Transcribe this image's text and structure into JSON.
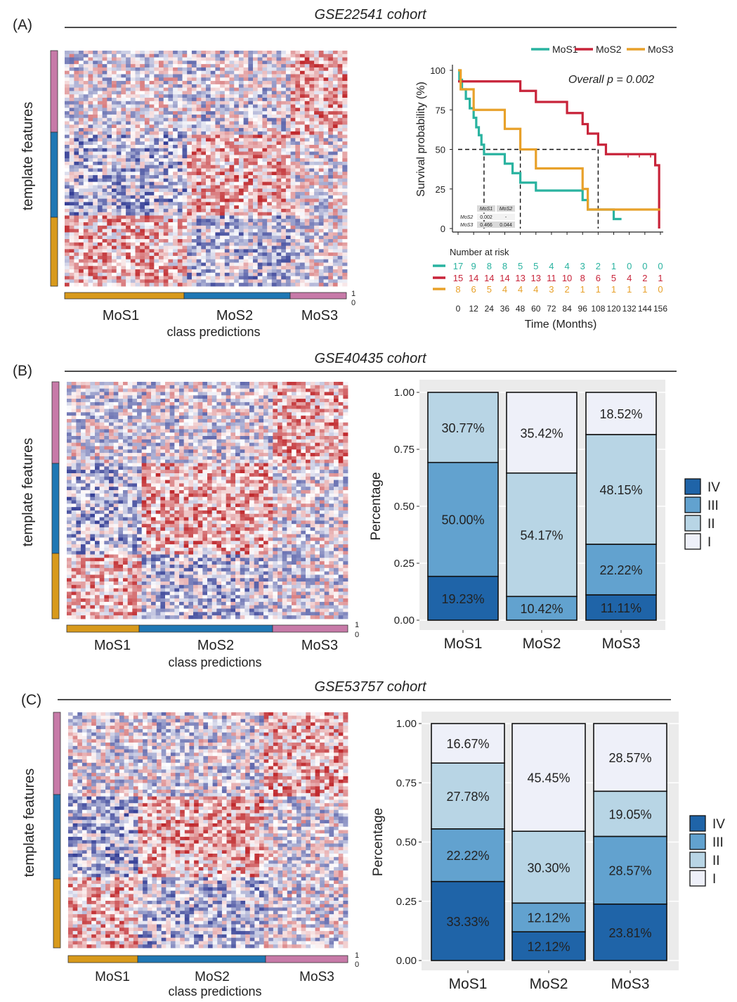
{
  "panels": [
    {
      "label": "(A)",
      "cohort": "GSE22541 cohort",
      "heatmap": {
        "ylabel": "template features",
        "xlabel": "class predictions",
        "classes": [
          "MoS1",
          "MoS2",
          "MoS3"
        ],
        "legend_hi": "1",
        "legend_lo": "0"
      }
    },
    {
      "label": "(B)",
      "cohort": "GSE40435 cohort",
      "heatmap": {
        "ylabel": "template features",
        "xlabel": "class predictions",
        "classes": [
          "MoS1",
          "MoS2",
          "MoS3"
        ],
        "legend_hi": "1",
        "legend_lo": "0"
      }
    },
    {
      "label": "(C)",
      "cohort": "GSE53757 cohort",
      "heatmap": {
        "ylabel": "template features",
        "xlabel": "class predictions",
        "classes": [
          "MoS1",
          "MoS2",
          "MoS3"
        ],
        "legend_hi": "1",
        "legend_lo": "0"
      }
    }
  ],
  "colors": {
    "MoS1": "#2ab3a0",
    "MoS2": "#c8243a",
    "MoS3": "#e8a12a",
    "hm_high": "#c0282c",
    "hm_low": "#2a3591",
    "bar_feature_top": "#c77aa8",
    "bar_feature_mid": "#1f77b4",
    "bar_feature_bottom": "#d89a1c",
    "class_bar_MoS1": "#d89a1c",
    "class_bar_MoS2": "#1f77b4",
    "class_bar_MoS3": "#c77aa8",
    "grade_IV": "#1f64a8",
    "grade_III": "#62a2cf",
    "grade_II": "#b8d5e5",
    "grade_I": "#eef0f9",
    "panel_bg": "#ebebeb"
  },
  "chart_data": [
    {
      "type": "line",
      "subtype": "kaplan-meier",
      "title": "",
      "xlabel": "Time (Months)",
      "ylabel": "Survival probability (%)",
      "xlim": [
        0,
        156
      ],
      "ylim": [
        0,
        100
      ],
      "xticks": [
        0,
        12,
        24,
        36,
        48,
        60,
        72,
        84,
        96,
        108,
        120,
        132,
        144,
        156
      ],
      "yticks": [
        0,
        25,
        50,
        75,
        100
      ],
      "annotation": "Overall p = 0.002",
      "legend_position": "top-right",
      "series": [
        {
          "name": "MoS1",
          "points": [
            [
              0,
              100
            ],
            [
              1,
              94
            ],
            [
              3,
              88
            ],
            [
              6,
              82
            ],
            [
              9,
              76
            ],
            [
              12,
              70
            ],
            [
              14,
              64
            ],
            [
              16,
              59
            ],
            [
              18,
              53
            ],
            [
              20,
              47
            ],
            [
              36,
              41
            ],
            [
              42,
              35
            ],
            [
              48,
              29
            ],
            [
              60,
              24
            ],
            [
              96,
              18
            ],
            [
              100,
              12
            ],
            [
              120,
              6
            ],
            [
              126,
              6
            ]
          ]
        },
        {
          "name": "MoS2",
          "points": [
            [
              0,
              93
            ],
            [
              48,
              87
            ],
            [
              60,
              80
            ],
            [
              84,
              73
            ],
            [
              96,
              66
            ],
            [
              100,
              60
            ],
            [
              108,
              53
            ],
            [
              114,
              47
            ],
            [
              152,
              40
            ],
            [
              155,
              0
            ]
          ]
        },
        {
          "name": "MoS3",
          "points": [
            [
              0,
              100
            ],
            [
              2,
              88
            ],
            [
              12,
              75
            ],
            [
              36,
              63
            ],
            [
              48,
              50
            ],
            [
              60,
              38
            ],
            [
              96,
              25
            ],
            [
              100,
              12
            ],
            [
              156,
              12
            ]
          ]
        }
      ],
      "median_lines": [
        20,
        48,
        108
      ],
      "pairwise_table": {
        "cols": [
          "MoS1",
          "MoS2"
        ],
        "rows": [
          {
            "name": "MoS2",
            "values": [
              "0.002",
              "-"
            ]
          },
          {
            "name": "MoS3",
            "values": [
              "0.466",
              "0.044"
            ]
          }
        ]
      },
      "risk_table": {
        "title": "Number at risk",
        "times": [
          0,
          12,
          24,
          36,
          48,
          60,
          72,
          84,
          96,
          108,
          120,
          132,
          144,
          156
        ],
        "rows": [
          {
            "name": "MoS1",
            "values": [
              17,
              9,
              8,
              8,
              5,
              5,
              4,
              4,
              3,
              2,
              1,
              0,
              0,
              0
            ]
          },
          {
            "name": "MoS2",
            "values": [
              15,
              14,
              14,
              14,
              13,
              13,
              11,
              10,
              8,
              6,
              5,
              4,
              2,
              1
            ]
          },
          {
            "name": "MoS3",
            "values": [
              8,
              6,
              5,
              4,
              4,
              4,
              3,
              2,
              1,
              1,
              1,
              1,
              1,
              0
            ]
          }
        ]
      }
    },
    {
      "type": "bar",
      "subtype": "stacked-percent",
      "title": "",
      "xlabel": "",
      "ylabel": "Percentage",
      "ylim": [
        0,
        1
      ],
      "yticks": [
        "0.00",
        "0.25",
        "0.50",
        "0.75",
        "1.00"
      ],
      "categories": [
        "MoS1",
        "MoS2",
        "MoS3"
      ],
      "legend_position": "right",
      "series": [
        {
          "name": "IV",
          "values": [
            0.1923,
            0.0,
            0.1111
          ],
          "labels": [
            "19.23%",
            "",
            "11.11%"
          ]
        },
        {
          "name": "III",
          "values": [
            0.5,
            0.1042,
            0.2222
          ],
          "labels": [
            "50.00%",
            "10.42%",
            "22.22%"
          ]
        },
        {
          "name": "II",
          "values": [
            0.3077,
            0.5417,
            0.4815
          ],
          "labels": [
            "30.77%",
            "54.17%",
            "48.15%"
          ]
        },
        {
          "name": "I",
          "values": [
            0.0,
            0.3542,
            0.1852
          ],
          "labels": [
            "",
            "35.42%",
            "18.52%"
          ]
        }
      ]
    },
    {
      "type": "bar",
      "subtype": "stacked-percent",
      "title": "",
      "xlabel": "",
      "ylabel": "Percentage",
      "ylim": [
        0,
        1
      ],
      "yticks": [
        "0.00",
        "0.25",
        "0.50",
        "0.75",
        "1.00"
      ],
      "categories": [
        "MoS1",
        "MoS2",
        "MoS3"
      ],
      "legend_position": "right",
      "series": [
        {
          "name": "IV",
          "values": [
            0.3333,
            0.1212,
            0.2381
          ],
          "labels": [
            "33.33%",
            "12.12%",
            "23.81%"
          ]
        },
        {
          "name": "III",
          "values": [
            0.2222,
            0.1212,
            0.2857
          ],
          "labels": [
            "22.22%",
            "12.12%",
            "28.57%"
          ]
        },
        {
          "name": "II",
          "values": [
            0.2778,
            0.303,
            0.1905
          ],
          "labels": [
            "27.78%",
            "30.30%",
            "19.05%"
          ]
        },
        {
          "name": "I",
          "values": [
            0.1667,
            0.4545,
            0.2857
          ],
          "labels": [
            "16.67%",
            "45.45%",
            "28.57%"
          ]
        }
      ]
    }
  ]
}
